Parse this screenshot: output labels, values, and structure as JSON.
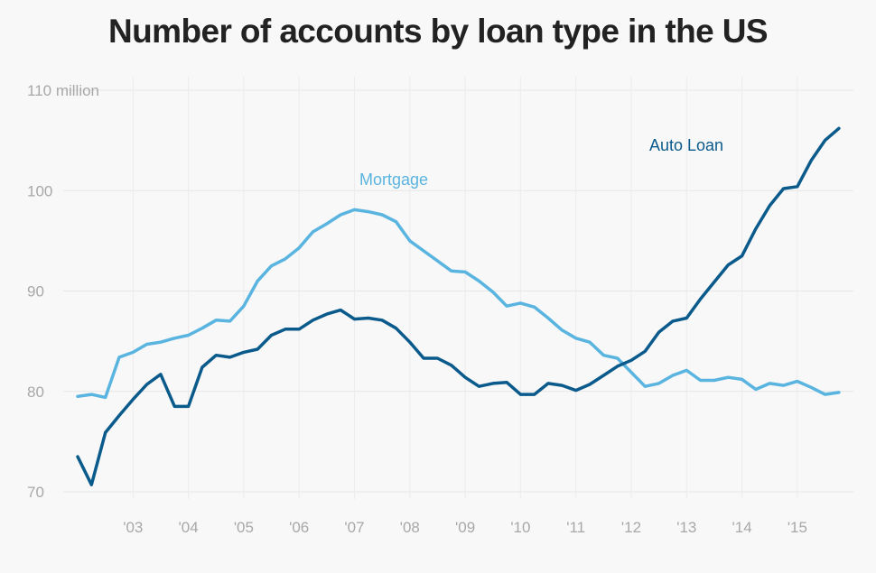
{
  "chart_data": {
    "type": "line",
    "title": "Number of accounts by loan type in the US",
    "xlabel": "",
    "ylabel": "",
    "y_unit_label": "million",
    "ylim": [
      70,
      110
    ],
    "yticks": [
      70,
      80,
      90,
      100,
      110
    ],
    "xlim": [
      2002.0,
      2016.0
    ],
    "xticks": [
      2003,
      2004,
      2005,
      2006,
      2007,
      2008,
      2009,
      2010,
      2011,
      2012,
      2013,
      2014,
      2015
    ],
    "xtick_labels": [
      "'03",
      "'04",
      "'05",
      "'06",
      "'07",
      "'08",
      "'09",
      "'10",
      "'11",
      "'12",
      "'13",
      "'14",
      "'15"
    ],
    "grid": true,
    "legend": "direct labels on lines",
    "x": [
      2002.0,
      2002.25,
      2002.5,
      2002.75,
      2003.0,
      2003.25,
      2003.5,
      2003.75,
      2004.0,
      2004.25,
      2004.5,
      2004.75,
      2005.0,
      2005.25,
      2005.5,
      2005.75,
      2006.0,
      2006.25,
      2006.5,
      2006.75,
      2007.0,
      2007.25,
      2007.5,
      2007.75,
      2008.0,
      2008.25,
      2008.5,
      2008.75,
      2009.0,
      2009.25,
      2009.5,
      2009.75,
      2010.0,
      2010.25,
      2010.5,
      2010.75,
      2011.0,
      2011.25,
      2011.5,
      2011.75,
      2012.0,
      2012.25,
      2012.5,
      2012.75,
      2013.0,
      2013.25,
      2013.5,
      2013.75,
      2014.0,
      2014.25,
      2014.5,
      2014.75,
      2015.0,
      2015.25,
      2015.5,
      2015.75
    ],
    "series": [
      {
        "name": "Mortgage",
        "color": "#5ab4e0",
        "values": [
          79.5,
          79.7,
          79.4,
          83.4,
          83.9,
          84.7,
          84.9,
          85.3,
          85.6,
          86.3,
          87.1,
          87.0,
          88.5,
          91.0,
          92.5,
          93.2,
          94.3,
          95.9,
          96.7,
          97.6,
          98.1,
          97.9,
          97.6,
          96.9,
          95.0,
          94.0,
          93.0,
          92.0,
          91.9,
          91.0,
          89.9,
          88.5,
          88.8,
          88.4,
          87.3,
          86.1,
          85.3,
          84.9,
          83.6,
          83.3,
          81.9,
          80.5,
          80.8,
          81.6,
          82.1,
          81.1,
          81.1,
          81.4,
          81.2,
          80.2,
          80.8,
          80.6,
          81.0,
          80.4,
          79.7,
          79.9
        ]
      },
      {
        "name": "Auto Loan",
        "color": "#0a5a8c",
        "values": [
          73.5,
          70.7,
          75.9,
          77.6,
          79.2,
          80.7,
          81.7,
          78.5,
          78.5,
          82.4,
          83.6,
          83.4,
          83.9,
          84.2,
          85.6,
          86.2,
          86.2,
          87.1,
          87.7,
          88.1,
          87.2,
          87.3,
          87.1,
          86.3,
          84.9,
          83.3,
          83.3,
          82.6,
          81.4,
          80.5,
          80.8,
          80.9,
          79.7,
          79.7,
          80.8,
          80.6,
          80.1,
          80.7,
          81.6,
          82.5,
          83.1,
          84.0,
          85.9,
          87.0,
          87.3,
          89.2,
          90.9,
          92.6,
          93.5,
          96.2,
          98.5,
          100.2,
          100.4,
          103.0,
          105.0,
          106.2
        ]
      }
    ]
  }
}
